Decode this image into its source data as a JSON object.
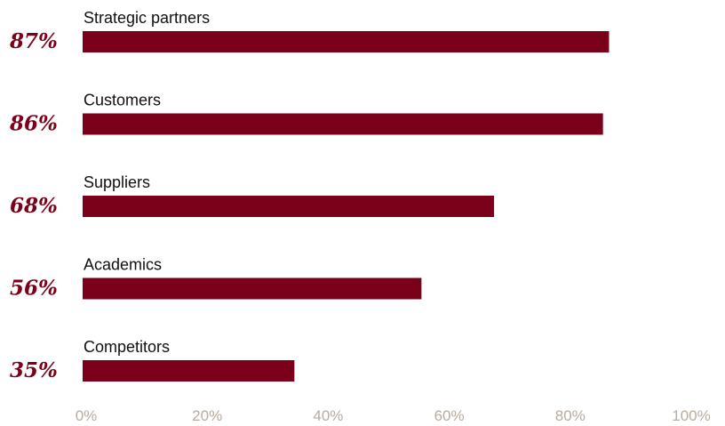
{
  "chart_data": {
    "type": "bar",
    "orientation": "horizontal",
    "categories": [
      "Strategic partners",
      "Customers",
      "Suppliers",
      "Academics",
      "Competitors"
    ],
    "values": [
      87,
      86,
      68,
      56,
      35
    ],
    "value_labels": [
      "87%",
      "86%",
      "68%",
      "56%",
      "35%"
    ],
    "xlim": [
      0,
      100
    ],
    "x_ticks": [
      "0%",
      "20%",
      "40%",
      "60%",
      "80%",
      "100%"
    ],
    "grid": false,
    "colors": {
      "bar": "#7b0019",
      "value_label": "#7b0019",
      "category_label": "#111111",
      "tick_label": "#b8aca0"
    }
  }
}
